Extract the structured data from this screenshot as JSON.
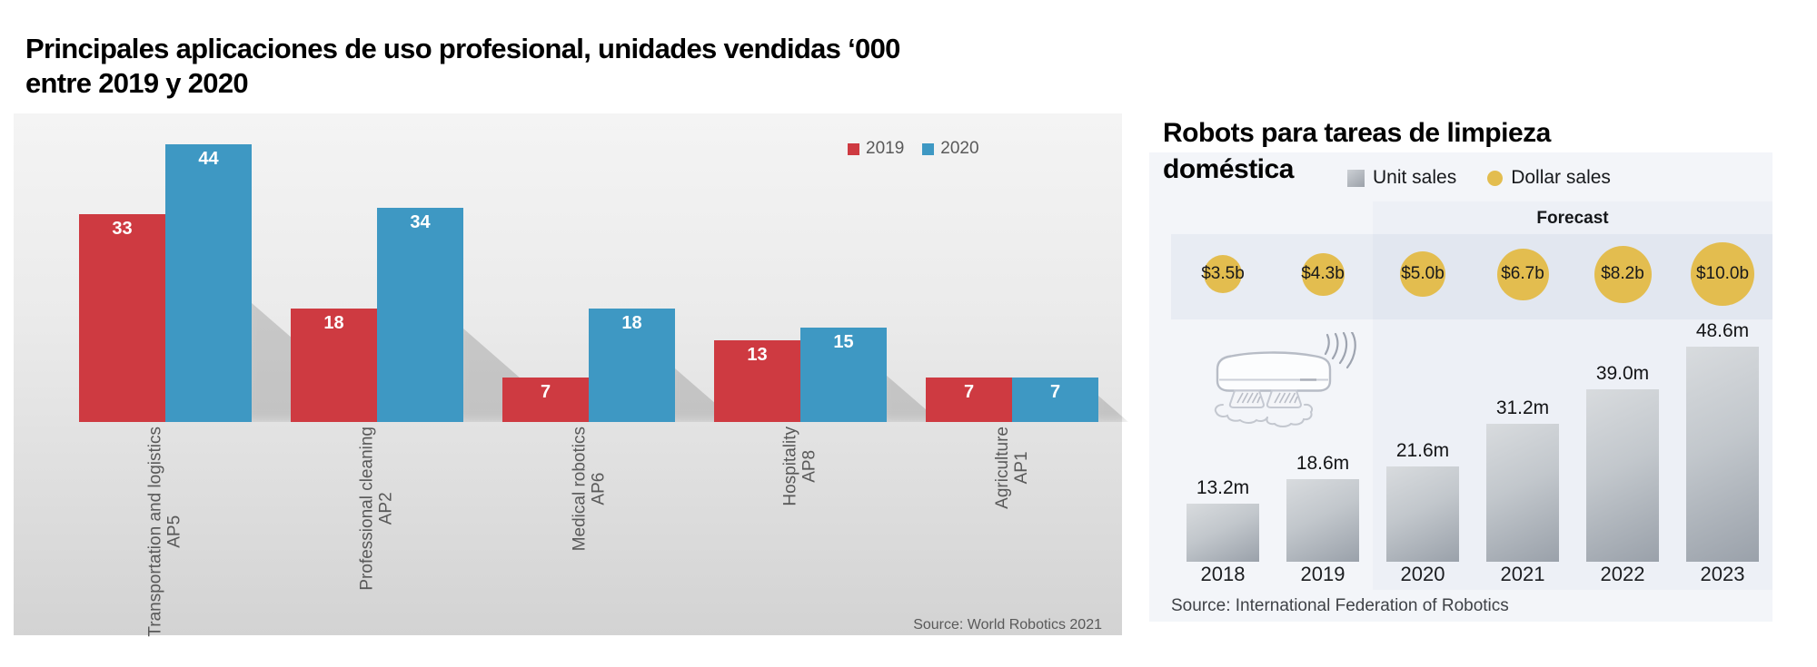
{
  "left_chart": {
    "title_line1": "Principales aplicaciones de uso profesional, unidades vendidas ‘000",
    "title_line2": "entre 2019 y 2020",
    "legend": [
      {
        "label": "2019",
        "color": "#ce3a41"
      },
      {
        "label": "2020",
        "color": "#3e98c3"
      }
    ],
    "source": "Source: World Robotics 2021"
  },
  "right_chart": {
    "title_line1": "Robots para tareas de limpieza",
    "title_line2": "doméstica",
    "legend": [
      {
        "label": "Unit sales",
        "swatch": "gray-gradient-square"
      },
      {
        "label": "Dollar sales",
        "swatch": "#e3bd4f"
      }
    ],
    "forecast_label": "Forecast",
    "source": "Source: International Federation of Robotics"
  },
  "chart_data": [
    {
      "type": "bar",
      "title": "Principales aplicaciones de uso profesional, unidades vendidas ‘000 entre 2019 y 2020",
      "unit": "thousands of units",
      "categories": [
        "Transportation and logistics",
        "Professional cleaning",
        "Medical robotics",
        "Hospitality",
        "Agriculture"
      ],
      "category_codes": [
        "AP5",
        "AP2",
        "AP6",
        "AP8",
        "AP1"
      ],
      "series": [
        {
          "name": "2019",
          "color": "#ce3a41",
          "values": [
            33,
            18,
            7,
            13,
            7
          ]
        },
        {
          "name": "2020",
          "color": "#3e98c3",
          "values": [
            44,
            34,
            18,
            15,
            7
          ]
        }
      ],
      "ylim": [
        0,
        48
      ],
      "grid": false,
      "legend_position": "top-right",
      "source": "Source: World Robotics 2021"
    },
    {
      "type": "bar",
      "title": "Robots para tareas de limpieza doméstica",
      "categories": [
        "2018",
        "2019",
        "2020",
        "2021",
        "2022",
        "2023"
      ],
      "series": [
        {
          "name": "Unit sales",
          "unit": "millions of units",
          "values": [
            13.2,
            18.6,
            21.6,
            31.2,
            39.0,
            48.6
          ],
          "labels": [
            "13.2m",
            "18.6m",
            "21.6m",
            "31.2m",
            "39.0m",
            "48.6m"
          ]
        },
        {
          "name": "Dollar sales",
          "unit": "billions USD",
          "values": [
            3.5,
            4.3,
            5.0,
            6.7,
            8.2,
            10.0
          ],
          "labels": [
            "$3.5b",
            "$4.3b",
            "$5.0b",
            "$6.7b",
            "$8.2b",
            "$10.0b"
          ],
          "color": "#e3bd4f"
        }
      ],
      "forecast_label": "Forecast",
      "forecast_categories": [
        "2020",
        "2021",
        "2022",
        "2023"
      ],
      "legend_position": "top",
      "grid": false,
      "source": "Source: International Federation of Robotics"
    }
  ]
}
